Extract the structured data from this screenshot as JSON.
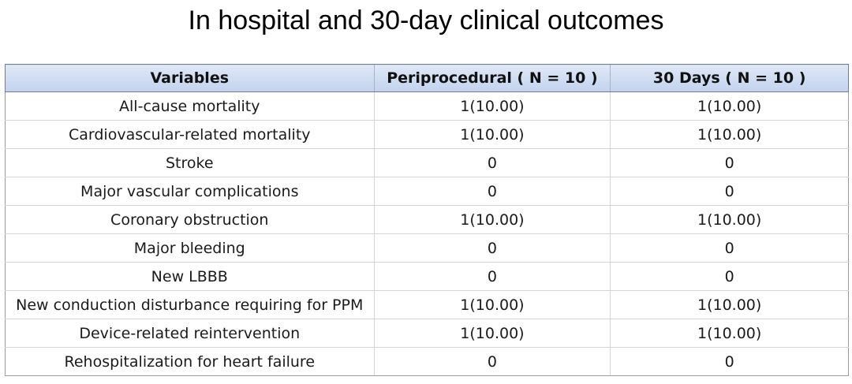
{
  "title": "In hospital and 30-day clinical outcomes",
  "table": {
    "headers": [
      "Variables",
      "Periprocedural ( N = 10 )",
      "30 Days ( N = 10 )"
    ],
    "rows": [
      [
        "All-cause mortality",
        "1(10.00)",
        "1(10.00)"
      ],
      [
        "Cardiovascular-related mortality",
        "1(10.00)",
        "1(10.00)"
      ],
      [
        "Stroke",
        "0",
        "0"
      ],
      [
        "Major vascular complications",
        "0",
        "0"
      ],
      [
        "Coronary obstruction",
        "1(10.00)",
        "1(10.00)"
      ],
      [
        "Major bleeding",
        "0",
        "0"
      ],
      [
        "New LBBB",
        "0",
        "0"
      ],
      [
        "New conduction disturbance requiring for PPM",
        "1(10.00)",
        "1(10.00)"
      ],
      [
        "Device-related reintervention",
        "1(10.00)",
        "1(10.00)"
      ],
      [
        "Rehospitalization for heart failure",
        "0",
        "0"
      ]
    ]
  },
  "colors": {
    "header_bg": "#c2d3ee",
    "header_border": "#6f7d98",
    "grid": "#d4d4d4"
  }
}
